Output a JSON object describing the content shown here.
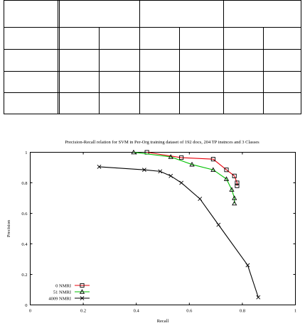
{
  "table": {
    "rows": 5,
    "cols": 7,
    "cells": []
  },
  "chart_data": {
    "type": "line",
    "title": "Precision-Recall relation for SVM in Per-Org training dataset of 192 docs, 204 TP instnces and 3 Classes",
    "xlabel": "Recall",
    "ylabel": "Precision",
    "xlim": [
      0,
      1
    ],
    "ylim": [
      0,
      1
    ],
    "xticks": [
      "0",
      "0.2",
      "0.4",
      "0.6",
      "0.8",
      "1"
    ],
    "yticks": [
      "0",
      "0.2",
      "0.4",
      "0.6",
      "0.8",
      "1"
    ],
    "grid": false,
    "legend_position": "bottom-left",
    "series": [
      {
        "name": "0 NMRI",
        "color": "#e8000b",
        "marker": "square",
        "x": [
          0.44,
          0.57,
          0.69,
          0.74,
          0.77,
          0.78,
          0.78
        ],
        "y": [
          1.0,
          0.965,
          0.955,
          0.885,
          0.845,
          0.8,
          0.78
        ]
      },
      {
        "name": "51 NMRI",
        "color": "#00c000",
        "marker": "triangle",
        "x": [
          0.39,
          0.53,
          0.61,
          0.69,
          0.74,
          0.76,
          0.77,
          0.77
        ],
        "y": [
          1.0,
          0.97,
          0.92,
          0.885,
          0.825,
          0.755,
          0.7,
          0.665
        ]
      },
      {
        "name": "4009 NMRI",
        "color": "#000000",
        "marker": "x",
        "x": [
          0.26,
          0.43,
          0.49,
          0.53,
          0.57,
          0.64,
          0.71,
          0.82,
          0.86
        ],
        "y": [
          0.905,
          0.885,
          0.875,
          0.845,
          0.8,
          0.695,
          0.525,
          0.26,
          0.05
        ]
      }
    ]
  }
}
